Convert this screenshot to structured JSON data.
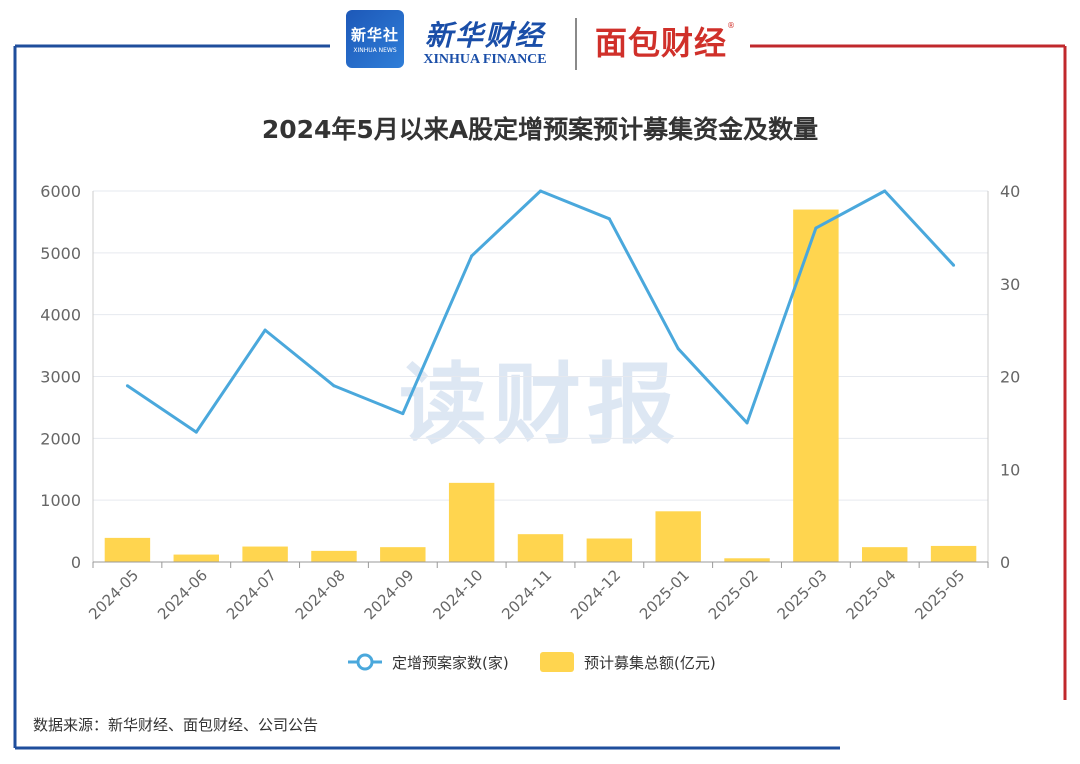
{
  "brand": {
    "xinhua_badge_cn": "新华社",
    "xinhua_badge_en": "XINHUA NEWS",
    "xinhua_finance_cn": "新华财经",
    "xinhua_finance_en": "XINHUA FINANCE",
    "mianbao_cn": "面包财经",
    "mianbao_reg": "®"
  },
  "watermark": "读财报",
  "source": "数据来源：新华财经、面包财经、公司公告",
  "colors": {
    "frame_left": "#1f4e9c",
    "frame_right": "#c0282c",
    "bar": "#ffd54f",
    "line": "#4aa8dc",
    "grid": "#e6e9ef",
    "axis_text": "#666666",
    "title": "#333333",
    "watermark": "#d8e3f2"
  },
  "chart_data": {
    "type": "bar+line",
    "title": "2024年5月以来A股定增预案预计募集资金及数量",
    "categories": [
      "2024-05",
      "2024-06",
      "2024-07",
      "2024-08",
      "2024-09",
      "2024-10",
      "2024-11",
      "2024-12",
      "2025-01",
      "2025-02",
      "2025-03",
      "2025-04",
      "2025-05"
    ],
    "series": [
      {
        "name": "预计募集总额(亿元)",
        "type": "bar",
        "axis": "left",
        "values": [
          390,
          120,
          250,
          180,
          240,
          1280,
          450,
          380,
          820,
          60,
          5700,
          240,
          260
        ]
      },
      {
        "name": "定增预案家数(家)",
        "type": "line",
        "axis": "right",
        "values": [
          19,
          14,
          25,
          19,
          16,
          33,
          40,
          37,
          23,
          15,
          36,
          40,
          32
        ]
      }
    ],
    "y_left": {
      "min": 0,
      "max": 6000,
      "ticks": [
        "0",
        "1000",
        "2000",
        "3000",
        "4000",
        "5000",
        "6000"
      ]
    },
    "y_right": {
      "min": 0,
      "max": 40,
      "ticks": [
        "0",
        "10",
        "20",
        "30",
        "40"
      ]
    },
    "grid": true,
    "legend_position": "bottom-center"
  }
}
